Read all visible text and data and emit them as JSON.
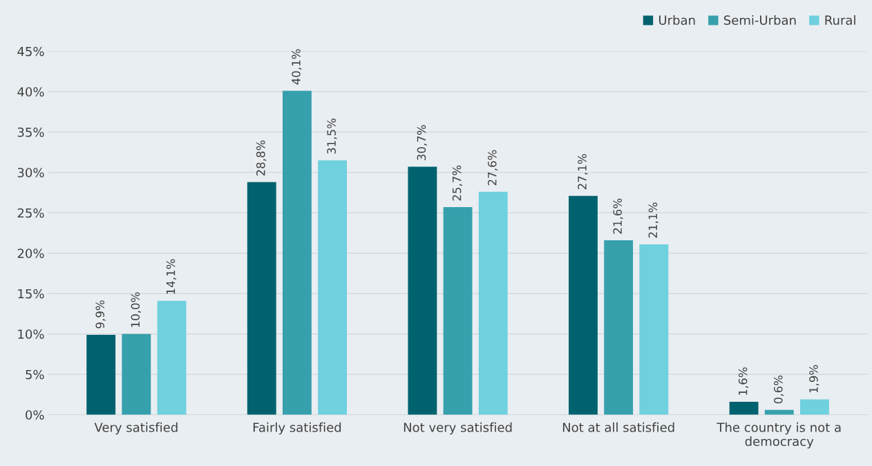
{
  "chart_data": {
    "type": "bar",
    "categories": [
      "Very satisfied",
      "Fairly satisfied",
      "Not very satisfied",
      "Not at all satisfied",
      "The country is not a democracy"
    ],
    "series": [
      {
        "name": "Urban",
        "color": "#00626e",
        "values": [
          9.9,
          28.8,
          30.7,
          27.1,
          1.6
        ],
        "value_labels": [
          "9,9%",
          "28,8%",
          "30,7%",
          "27,1%",
          "1,6%"
        ]
      },
      {
        "name": "Semi-Urban",
        "color": "#37a0ad",
        "values": [
          10.0,
          40.1,
          25.7,
          21.6,
          0.6
        ],
        "value_labels": [
          "10,0%",
          "40,1%",
          "25,7%",
          "21,6%",
          "0,6%"
        ]
      },
      {
        "name": "Rural",
        "color": "#6fd0de",
        "values": [
          14.1,
          31.5,
          27.6,
          21.1,
          1.9
        ],
        "value_labels": [
          "14,1%",
          "31,5%",
          "27,6%",
          "21,1%",
          "1,9%"
        ]
      }
    ],
    "ylim": [
      0,
      45
    ],
    "yticks": [
      {
        "value": 0,
        "label": "0%"
      },
      {
        "value": 5,
        "label": "5%"
      },
      {
        "value": 10,
        "label": "10%"
      },
      {
        "value": 15,
        "label": "15%"
      },
      {
        "value": 20,
        "label": "20%"
      },
      {
        "value": 25,
        "label": "25%"
      },
      {
        "value": 30,
        "label": "30%"
      },
      {
        "value": 35,
        "label": "35%"
      },
      {
        "value": 40,
        "label": "40%"
      },
      {
        "value": 45,
        "label": "45%"
      }
    ],
    "grid": "y",
    "legend": "top right"
  }
}
